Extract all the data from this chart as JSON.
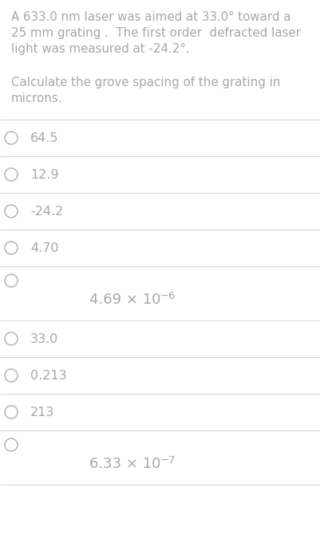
{
  "background_color": "#ffffff",
  "text_color": "#a8a8a8",
  "prompt_lines": [
    "A 633.0 nm laser was aimed at 33.0° toward a",
    "25 mm grating .  The first order  defracted laser",
    "light was measured at -24.2°."
  ],
  "question_lines": [
    "Calculate the grove spacing of the grating in",
    "microns."
  ],
  "options": [
    {
      "label": "64.5",
      "type": "text"
    },
    {
      "label": "12.9",
      "type": "text"
    },
    {
      "label": "-24.2",
      "type": "text"
    },
    {
      "label": "4.70",
      "type": "text"
    },
    {
      "label": "4.69 × 10",
      "exp": "−6",
      "type": "math"
    },
    {
      "label": "33.0",
      "type": "text"
    },
    {
      "label": "0.213",
      "type": "text"
    },
    {
      "label": "213",
      "type": "text"
    },
    {
      "label": "6.33 × 10",
      "exp": "−7",
      "type": "math"
    }
  ],
  "divider_color": "#d8d8d8",
  "circle_color": "#c0c0c0",
  "font_size_prompt": 10.8,
  "font_size_question": 10.8,
  "font_size_option": 11.5,
  "font_size_math": 13.0,
  "font_size_exp": 9.5
}
